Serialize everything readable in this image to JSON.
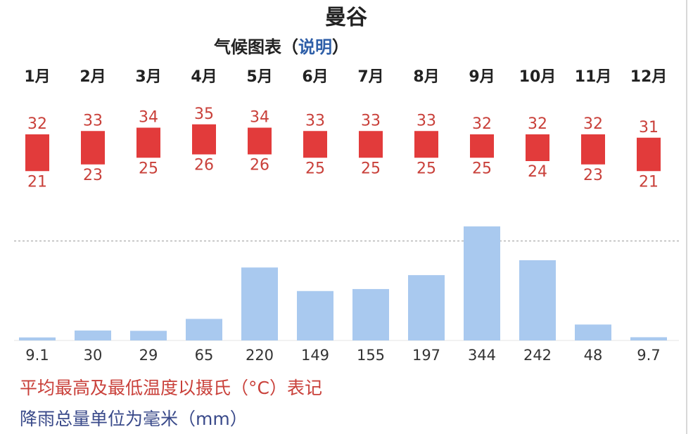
{
  "header": {
    "title": "曼谷",
    "subtitle": "气候图表",
    "subtitle_brackets": [
      "（",
      "）"
    ],
    "subtitle_link": "说明"
  },
  "chart_data": [
    {
      "type": "range",
      "categories": [
        "1月",
        "2月",
        "3月",
        "4月",
        "5月",
        "6月",
        "7月",
        "8月",
        "9月",
        "10月",
        "11月",
        "12月"
      ],
      "high": [
        32,
        33,
        34,
        35,
        34,
        33,
        33,
        33,
        32,
        32,
        32,
        31
      ],
      "low": [
        21,
        23,
        25,
        26,
        26,
        25,
        25,
        25,
        25,
        24,
        23,
        21
      ],
      "color": "#e23b3b",
      "ylim": [
        20,
        36
      ]
    },
    {
      "type": "bar",
      "values": [
        9.1,
        30,
        29,
        65,
        220,
        149,
        155,
        197,
        344,
        242,
        48,
        9.7
      ],
      "color": "#a9c9ef",
      "ylim": [
        0,
        350
      ],
      "yticks": [
        300
      ],
      "grid": true
    }
  ],
  "notes": [
    "平均最高及最低温度以摄氏（°C）表记",
    "降雨总量单位为毫米（mm）"
  ]
}
